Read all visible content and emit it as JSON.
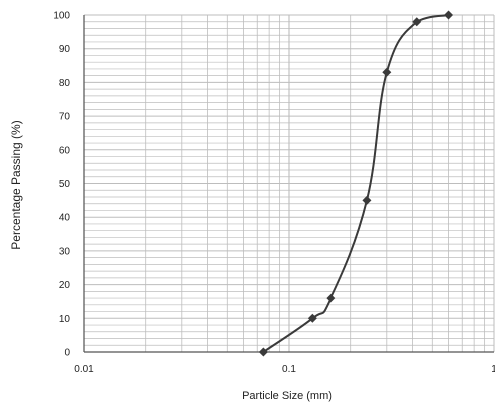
{
  "chart_data": {
    "type": "line",
    "title": "",
    "xlabel": "Particle Size (mm)",
    "ylabel": "Percentage Passing (%)",
    "x_scale": "log",
    "xlim": [
      0.01,
      1
    ],
    "ylim": [
      0,
      100
    ],
    "x_tick_labels": [
      "0.01",
      "0.1",
      "1"
    ],
    "y_tick_labels": [
      "0",
      "10",
      "20",
      "30",
      "40",
      "50",
      "60",
      "70",
      "80",
      "90",
      "100"
    ],
    "grid": true,
    "legend": "none",
    "series": [
      {
        "x": [
          0.075,
          0.13,
          0.16,
          0.24,
          0.3,
          0.42,
          0.6
        ],
        "y": [
          0,
          10,
          16,
          45,
          83,
          98,
          100
        ]
      }
    ],
    "colors": {
      "line": "#3a3a3a",
      "marker": "#3a3a3a",
      "grid": "#bdbdbd",
      "axis": "#555555"
    }
  }
}
